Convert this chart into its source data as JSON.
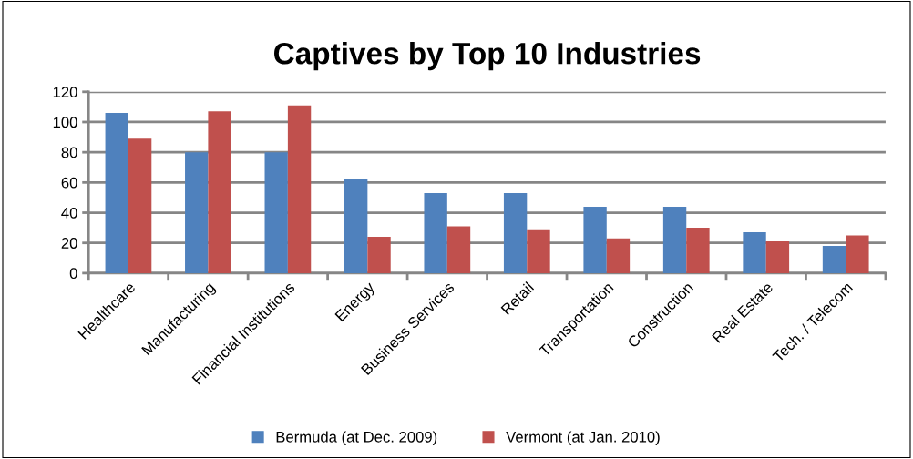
{
  "chart_data": {
    "type": "bar",
    "title": "Captives by Top 10 Industries",
    "categories": [
      "Healthcare",
      "Manufacturing",
      "Financial Institutions",
      "Energy",
      "Business Services",
      "Retail",
      "Transportation",
      "Construction",
      "Real Estate",
      "Tech. / Telecom"
    ],
    "series": [
      {
        "name": "Bermuda (at Dec. 2009)",
        "color": "#4f81bd",
        "values": [
          106,
          80,
          80,
          62,
          53,
          53,
          44,
          44,
          27,
          18
        ]
      },
      {
        "name": "Vermont (at Jan. 2010)",
        "color": "#c0504d",
        "values": [
          89,
          107,
          111,
          24,
          31,
          29,
          23,
          30,
          21,
          25
        ]
      }
    ],
    "ylim": [
      0,
      120
    ],
    "yticks": [
      0,
      20,
      40,
      60,
      80,
      100,
      120
    ],
    "grid": "y",
    "legend": "bottom"
  }
}
